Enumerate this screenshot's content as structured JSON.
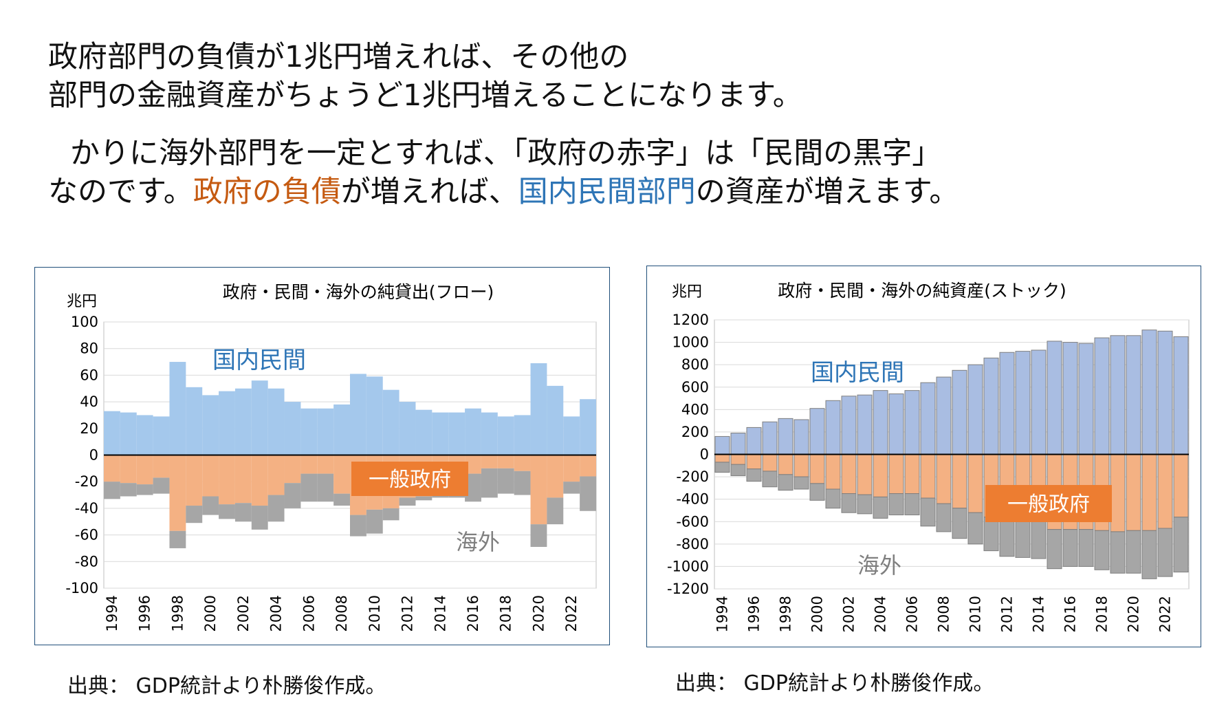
{
  "headline": {
    "line1": "政府部門の負債が1兆円増えれば、その他の",
    "line2": "部門の金融資産がちょうど1兆円増えることになります。",
    "line3": "かりに海外部門を一定とすれば、「政府の赤字」は「民間の黒字」",
    "line4_a": "なのです。",
    "line4_b": "政府の負債",
    "line4_c": "が増えれば、",
    "line4_d": "国内民間部門",
    "line4_e": "の資産が増えます。"
  },
  "colors": {
    "private": "#a4c8ec",
    "private_stock": "#a9bde2",
    "government": "#f4b183",
    "overseas": "#a6a6a6",
    "label_box": "#ed7d31",
    "accent_orange": "#c55a11",
    "accent_blue": "#2e75b6",
    "border": "#1f4e79"
  },
  "sources": {
    "left": "出典： GDP統計より朴勝俊作成。",
    "right": "出典： GDP統計より朴勝俊作成。"
  },
  "chart_data": [
    {
      "type": "bar",
      "stacked": true,
      "title": "政府・民間・海外の純貸出(フロー)",
      "unit_label": "兆円",
      "ylim": [
        -100,
        100
      ],
      "yticks": [
        100,
        80,
        60,
        40,
        20,
        0,
        -20,
        -40,
        -60,
        -80,
        -100
      ],
      "x": [
        1994,
        1995,
        1996,
        1997,
        1998,
        1999,
        2000,
        2001,
        2002,
        2003,
        2004,
        2005,
        2006,
        2007,
        2008,
        2009,
        2010,
        2011,
        2012,
        2013,
        2014,
        2015,
        2016,
        2017,
        2018,
        2019,
        2020,
        2021,
        2022,
        2023
      ],
      "xtick_labels": [
        "1994",
        "1996",
        "1998",
        "2000",
        "2002",
        "2004",
        "2006",
        "2008",
        "2010",
        "2012",
        "2014",
        "2016",
        "2018",
        "2020",
        "2022"
      ],
      "grid": true,
      "series": [
        {
          "name": "国内民間",
          "values": [
            33,
            32,
            30,
            29,
            70,
            51,
            45,
            48,
            50,
            56,
            50,
            40,
            35,
            35,
            38,
            61,
            59,
            49,
            40,
            34,
            32,
            32,
            35,
            32,
            29,
            30,
            69,
            52,
            29,
            42
          ]
        },
        {
          "name": "一般政府",
          "values": [
            -20,
            -21,
            -22,
            -17,
            -57,
            -38,
            -31,
            -37,
            -36,
            -38,
            -30,
            -21,
            -14,
            -14,
            -29,
            -45,
            -41,
            -40,
            -32,
            -31,
            -23,
            -14,
            -14,
            -10,
            -10,
            -12,
            -52,
            -32,
            -20,
            -16
          ]
        },
        {
          "name": "海外",
          "values": [
            -13,
            -10,
            -8,
            -12,
            -13,
            -13,
            -14,
            -11,
            -14,
            -18,
            -20,
            -19,
            -21,
            -21,
            -9,
            -16,
            -18,
            -9,
            -6,
            -3,
            -9,
            -18,
            -21,
            -22,
            -19,
            -18,
            -17,
            -20,
            -9,
            -26
          ]
        }
      ],
      "annotations": {
        "private": "国内民間",
        "government": "一般政府",
        "overseas": "海外"
      }
    },
    {
      "type": "bar",
      "stacked": true,
      "title": "政府・民間・海外の純資産(ストック)",
      "unit_label": "兆円",
      "ylim": [
        -1200,
        1200
      ],
      "yticks": [
        1200,
        1000,
        800,
        600,
        400,
        200,
        0,
        -200,
        -400,
        -600,
        -800,
        -1000,
        -1200
      ],
      "x": [
        1994,
        1995,
        1996,
        1997,
        1998,
        1999,
        2000,
        2001,
        2002,
        2003,
        2004,
        2005,
        2006,
        2007,
        2008,
        2009,
        2010,
        2011,
        2012,
        2013,
        2014,
        2015,
        2016,
        2017,
        2018,
        2019,
        2020,
        2021,
        2022,
        2023
      ],
      "xtick_labels": [
        "1994",
        "1996",
        "1998",
        "2000",
        "2002",
        "2004",
        "2006",
        "2008",
        "2010",
        "2012",
        "2014",
        "2016",
        "2018",
        "2020",
        "2022"
      ],
      "grid": true,
      "series": [
        {
          "name": "国内民間",
          "values": [
            160,
            190,
            240,
            290,
            320,
            310,
            410,
            480,
            520,
            530,
            570,
            540,
            570,
            640,
            690,
            750,
            800,
            860,
            910,
            920,
            930,
            1010,
            1000,
            990,
            1040,
            1060,
            1060,
            1110,
            1100,
            1050
          ]
        },
        {
          "name": "一般政府",
          "values": [
            -70,
            -90,
            -130,
            -150,
            -180,
            -200,
            -260,
            -310,
            -350,
            -360,
            -380,
            -350,
            -350,
            -390,
            -440,
            -480,
            -520,
            -560,
            -570,
            -580,
            -600,
            -670,
            -670,
            -670,
            -680,
            -690,
            -680,
            -680,
            -660,
            -560
          ]
        },
        {
          "name": "海外",
          "values": [
            -90,
            -100,
            -110,
            -140,
            -140,
            -110,
            -150,
            -170,
            -170,
            -170,
            -190,
            -190,
            -190,
            -250,
            -250,
            -270,
            -280,
            -300,
            -340,
            -340,
            -330,
            -350,
            -330,
            -330,
            -350,
            -370,
            -380,
            -430,
            -430,
            -490
          ]
        }
      ],
      "annotations": {
        "private": "国内民間",
        "government": "一般政府",
        "overseas": "海外"
      }
    }
  ]
}
